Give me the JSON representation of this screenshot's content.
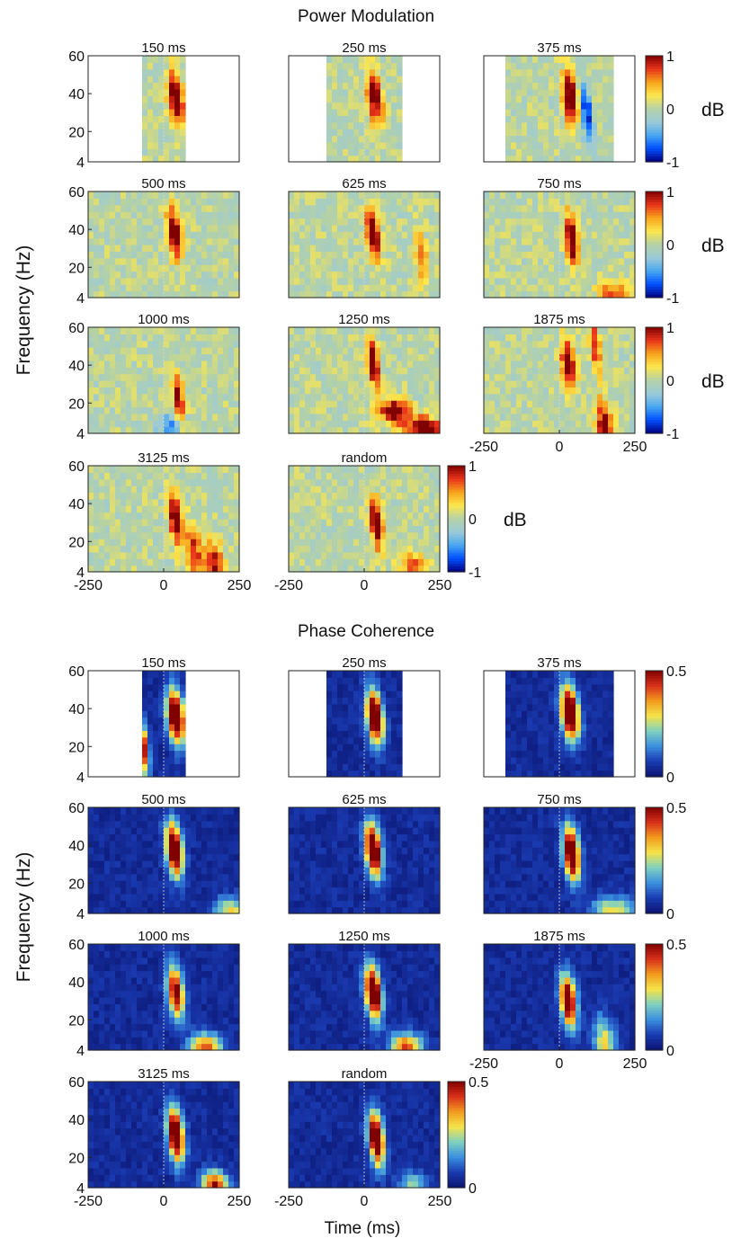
{
  "figure": {
    "power_title": "Power Modulation",
    "phase_title": "Phase Coherence",
    "ylabel": "Frequency (Hz)",
    "xlabel": "Time (ms)",
    "colors": {
      "power_colormap": [
        "#00007f",
        "#0050ff",
        "#4aa8f0",
        "#9ccad8",
        "#b4d1a6",
        "#fde74c",
        "#f7a31c",
        "#e8331a",
        "#800000"
      ],
      "phase_colormap": [
        "#0a1470",
        "#1a3ab0",
        "#3a8fe0",
        "#7fd0c0",
        "#f5e44a",
        "#f39a1f",
        "#d9301a",
        "#800000"
      ],
      "axis": "#222222",
      "zero_line": "#dddddd"
    }
  },
  "chart_data": [
    {
      "type": "heatmap",
      "title": "Power Modulation",
      "ylabel": "Frequency (Hz)",
      "xlabel": "Time (ms)",
      "xlim": [
        -250,
        250
      ],
      "ylim": [
        4,
        60
      ],
      "yticks": [
        4,
        20,
        40,
        60
      ],
      "xticks": [
        -250,
        0,
        250
      ],
      "colorbar": {
        "label": "dB",
        "range": [
          -1,
          1
        ],
        "ticks": [
          1,
          0,
          -1
        ]
      },
      "panels": [
        {
          "title": "150 ms",
          "data_window": [
            -75,
            75
          ],
          "peaks": [
            {
              "t": 40,
              "f": 38,
              "v": 1.0,
              "width": 28
            }
          ]
        },
        {
          "title": "250 ms",
          "data_window": [
            -125,
            125
          ],
          "peaks": [
            {
              "t": 35,
              "f": 38,
              "v": 1.0,
              "width": 28
            }
          ]
        },
        {
          "title": "375 ms",
          "data_window": [
            -187,
            187
          ],
          "peaks": [
            {
              "t": 35,
              "f": 38,
              "v": 1.0,
              "width": 30
            },
            {
              "t": 90,
              "f": 30,
              "v": -0.8,
              "width": 20
            }
          ]
        },
        {
          "title": "500 ms",
          "data_window": [
            -250,
            250
          ],
          "peaks": [
            {
              "t": 35,
              "f": 38,
              "v": 1.0,
              "width": 26
            }
          ]
        },
        {
          "title": "625 ms",
          "data_window": [
            -250,
            250
          ],
          "peaks": [
            {
              "t": 30,
              "f": 38,
              "v": 1.0,
              "width": 26
            },
            {
              "t": 190,
              "f": 25,
              "v": 0.6,
              "width": 20
            }
          ]
        },
        {
          "title": "750 ms",
          "data_window": [
            -250,
            250
          ],
          "peaks": [
            {
              "t": 40,
              "f": 35,
              "v": 1.0,
              "width": 26
            },
            {
              "t": 180,
              "f": 6,
              "v": 0.6,
              "width": 60
            }
          ]
        },
        {
          "title": "1000 ms",
          "data_window": [
            -250,
            250
          ],
          "peaks": [
            {
              "t": 50,
              "f": 22,
              "v": 0.9,
              "width": 20
            },
            {
              "t": 20,
              "f": 8,
              "v": -0.4,
              "width": 60
            }
          ]
        },
        {
          "title": "1250 ms",
          "data_window": [
            -250,
            250
          ],
          "peaks": [
            {
              "t": 30,
              "f": 42,
              "v": 1.0,
              "width": 22
            },
            {
              "t": 100,
              "f": 16,
              "v": 0.9,
              "width": 60
            },
            {
              "t": 200,
              "f": 6,
              "v": 1.0,
              "width": 70
            }
          ]
        },
        {
          "title": "1875 ms",
          "data_window": [
            -250,
            250
          ],
          "peaks": [
            {
              "t": 30,
              "f": 40,
              "v": 1.0,
              "width": 26
            },
            {
              "t": 120,
              "f": 50,
              "v": 0.8,
              "width": 18
            },
            {
              "t": 150,
              "f": 8,
              "v": 0.9,
              "width": 30
            }
          ]
        },
        {
          "title": "3125 ms",
          "data_window": [
            -250,
            250
          ],
          "peaks": [
            {
              "t": 40,
              "f": 32,
              "v": 1.0,
              "width": 26
            },
            {
              "t": 100,
              "f": 14,
              "v": 0.7,
              "width": 30
            },
            {
              "t": 170,
              "f": 6,
              "v": 0.8,
              "width": 40
            }
          ]
        },
        {
          "title": "random",
          "data_window": [
            -250,
            250
          ],
          "peaks": [
            {
              "t": 40,
              "f": 30,
              "v": 1.0,
              "width": 24
            },
            {
              "t": 160,
              "f": 8,
              "v": 0.6,
              "width": 50
            }
          ]
        }
      ]
    },
    {
      "type": "heatmap",
      "title": "Phase Coherence",
      "ylabel": "Frequency (Hz)",
      "xlabel": "Time (ms)",
      "xlim": [
        -250,
        250
      ],
      "ylim": [
        4,
        60
      ],
      "yticks": [
        4,
        20,
        40,
        60
      ],
      "xticks": [
        -250,
        0,
        250
      ],
      "colorbar": {
        "label": "",
        "range": [
          0,
          0.5
        ],
        "ticks": [
          0.5,
          0
        ]
      },
      "panels": [
        {
          "title": "150 ms",
          "data_window": [
            -75,
            75
          ],
          "peaks": [
            {
              "t": 40,
              "f": 36,
              "v": 0.5,
              "width": 32
            },
            {
              "t": -70,
              "f": 20,
              "v": 0.4,
              "width": 20
            }
          ]
        },
        {
          "title": "250 ms",
          "data_window": [
            -125,
            125
          ],
          "peaks": [
            {
              "t": 35,
              "f": 36,
              "v": 0.5,
              "width": 30
            }
          ]
        },
        {
          "title": "375 ms",
          "data_window": [
            -187,
            187
          ],
          "peaks": [
            {
              "t": 35,
              "f": 38,
              "v": 0.5,
              "width": 34
            }
          ]
        },
        {
          "title": "500 ms",
          "data_window": [
            -250,
            250
          ],
          "peaks": [
            {
              "t": 35,
              "f": 38,
              "v": 0.5,
              "width": 30
            },
            {
              "t": 220,
              "f": 6,
              "v": 0.2,
              "width": 60
            }
          ]
        },
        {
          "title": "625 ms",
          "data_window": [
            -250,
            250
          ],
          "peaks": [
            {
              "t": 30,
              "f": 38,
              "v": 0.5,
              "width": 30
            }
          ]
        },
        {
          "title": "750 ms",
          "data_window": [
            -250,
            250
          ],
          "peaks": [
            {
              "t": 40,
              "f": 36,
              "v": 0.5,
              "width": 30
            },
            {
              "t": 180,
              "f": 6,
              "v": 0.2,
              "width": 80
            }
          ]
        },
        {
          "title": "1000 ms",
          "data_window": [
            -250,
            250
          ],
          "peaks": [
            {
              "t": 40,
              "f": 35,
              "v": 0.4,
              "width": 30
            },
            {
              "t": 140,
              "f": 6,
              "v": 0.3,
              "width": 60
            }
          ]
        },
        {
          "title": "1250 ms",
          "data_window": [
            -250,
            250
          ],
          "peaks": [
            {
              "t": 30,
              "f": 35,
              "v": 0.5,
              "width": 30
            },
            {
              "t": 140,
              "f": 6,
              "v": 0.3,
              "width": 60
            }
          ]
        },
        {
          "title": "1875 ms",
          "data_window": [
            -250,
            250
          ],
          "peaks": [
            {
              "t": 30,
              "f": 30,
              "v": 0.45,
              "width": 30
            },
            {
              "t": 150,
              "f": 8,
              "v": 0.2,
              "width": 40
            }
          ]
        },
        {
          "title": "3125 ms",
          "data_window": [
            -250,
            250
          ],
          "peaks": [
            {
              "t": 40,
              "f": 32,
              "v": 0.5,
              "width": 30
            },
            {
              "t": 170,
              "f": 6,
              "v": 0.35,
              "width": 50
            }
          ]
        },
        {
          "title": "random",
          "data_window": [
            -250,
            250
          ],
          "peaks": [
            {
              "t": 40,
              "f": 30,
              "v": 0.5,
              "width": 28
            },
            {
              "t": 160,
              "f": 6,
              "v": 0.15,
              "width": 50
            }
          ]
        }
      ]
    }
  ]
}
